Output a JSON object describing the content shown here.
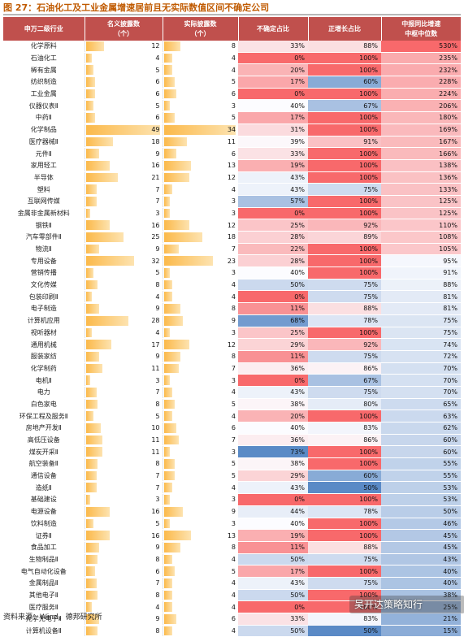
{
  "title": "图 27：石油化工及工业金属增速居前且无实际数值区间不确定公司",
  "headers": [
    "申万二级行业",
    "名义披露数\n（个）",
    "实际披露数\n（个）",
    "不确定占比",
    "正增长占比",
    "中报同比增速\n中枢中位数"
  ],
  "footer": "资料来源：Wind，德邦研究所",
  "watermark": "吴开达策略知行",
  "scale": {
    "nominal_max": 49,
    "actual_max": 34
  },
  "rows": [
    [
      "化学原料",
      "12",
      "8",
      "33%",
      "88%",
      "530%"
    ],
    [
      "石油化工",
      "4",
      "4",
      "0%",
      "100%",
      "235%"
    ],
    [
      "稀有金属",
      "5",
      "4",
      "20%",
      "100%",
      "232%"
    ],
    [
      "纺织制造",
      "6",
      "5",
      "17%",
      "60%",
      "228%"
    ],
    [
      "工业金属",
      "6",
      "6",
      "0%",
      "100%",
      "224%"
    ],
    [
      "仪器仪表Ⅱ",
      "5",
      "3",
      "40%",
      "67%",
      "206%"
    ],
    [
      "中药Ⅱ",
      "6",
      "5",
      "17%",
      "100%",
      "180%"
    ],
    [
      "化学制品",
      "49",
      "34",
      "31%",
      "100%",
      "169%"
    ],
    [
      "医疗器械Ⅱ",
      "18",
      "11",
      "39%",
      "91%",
      "167%"
    ],
    [
      "元件Ⅱ",
      "9",
      "6",
      "33%",
      "100%",
      "166%"
    ],
    [
      "家用轻工",
      "16",
      "13",
      "19%",
      "100%",
      "138%"
    ],
    [
      "半导体",
      "21",
      "12",
      "43%",
      "100%",
      "136%"
    ],
    [
      "塑料",
      "7",
      "4",
      "43%",
      "75%",
      "133%"
    ],
    [
      "互联网传媒",
      "7",
      "3",
      "57%",
      "100%",
      "125%"
    ],
    [
      "金属非金属新材料",
      "3",
      "3",
      "0%",
      "100%",
      "125%"
    ],
    [
      "钢铁Ⅱ",
      "16",
      "12",
      "25%",
      "92%",
      "110%"
    ],
    [
      "汽车零部件Ⅱ",
      "25",
      "18",
      "28%",
      "89%",
      "108%"
    ],
    [
      "物流Ⅱ",
      "9",
      "7",
      "22%",
      "100%",
      "105%"
    ],
    [
      "专用设备",
      "32",
      "23",
      "28%",
      "100%",
      "95%"
    ],
    [
      "营销传播",
      "5",
      "3",
      "40%",
      "100%",
      "91%"
    ],
    [
      "文化传媒",
      "8",
      "4",
      "50%",
      "75%",
      "88%"
    ],
    [
      "包装印刷Ⅱ",
      "4",
      "4",
      "0%",
      "75%",
      "81%"
    ],
    [
      "电子制造",
      "9",
      "8",
      "11%",
      "88%",
      "81%"
    ],
    [
      "计算机应用",
      "28",
      "9",
      "68%",
      "78%",
      "75%"
    ],
    [
      "视听器材",
      "4",
      "3",
      "25%",
      "100%",
      "75%"
    ],
    [
      "通用机械",
      "17",
      "12",
      "29%",
      "92%",
      "74%"
    ],
    [
      "服装家纺",
      "9",
      "8",
      "11%",
      "75%",
      "72%"
    ],
    [
      "化学制药",
      "11",
      "7",
      "36%",
      "86%",
      "70%"
    ],
    [
      "电机Ⅱ",
      "3",
      "3",
      "0%",
      "67%",
      "70%"
    ],
    [
      "电力",
      "7",
      "4",
      "43%",
      "75%",
      "70%"
    ],
    [
      "白色家电",
      "8",
      "5",
      "38%",
      "80%",
      "65%"
    ],
    [
      "环保工程及服务Ⅱ",
      "5",
      "4",
      "20%",
      "100%",
      "63%"
    ],
    [
      "房地产开发Ⅱ",
      "10",
      "6",
      "40%",
      "83%",
      "62%"
    ],
    [
      "高低压设备",
      "11",
      "7",
      "36%",
      "86%",
      "60%"
    ],
    [
      "煤炭开采Ⅱ",
      "11",
      "3",
      "73%",
      "100%",
      "60%"
    ],
    [
      "航空装备Ⅱ",
      "8",
      "5",
      "38%",
      "100%",
      "55%"
    ],
    [
      "通信设备",
      "7",
      "5",
      "29%",
      "60%",
      "55%"
    ],
    [
      "造纸Ⅱ",
      "7",
      "4",
      "43%",
      "50%",
      "53%"
    ],
    [
      "基础建设",
      "3",
      "3",
      "0%",
      "100%",
      "53%"
    ],
    [
      "电源设备",
      "16",
      "9",
      "44%",
      "78%",
      "50%"
    ],
    [
      "饮料制造",
      "5",
      "3",
      "40%",
      "100%",
      "46%"
    ],
    [
      "证券Ⅱ",
      "16",
      "13",
      "19%",
      "100%",
      "45%"
    ],
    [
      "食品加工",
      "9",
      "8",
      "11%",
      "88%",
      "45%"
    ],
    [
      "生物制品Ⅱ",
      "8",
      "4",
      "50%",
      "75%",
      "43%"
    ],
    [
      "电气自动化设备",
      "6",
      "5",
      "17%",
      "100%",
      "40%"
    ],
    [
      "金属制品Ⅱ",
      "7",
      "4",
      "43%",
      "75%",
      "40%"
    ],
    [
      "其他电子Ⅱ",
      "8",
      "4",
      "50%",
      "100%",
      "38%"
    ],
    [
      "医疗服务Ⅱ",
      "4",
      "4",
      "0%",
      "100%",
      "25%"
    ],
    [
      "光学光电子Ⅱ",
      "9",
      "6",
      "33%",
      "83%",
      "21%"
    ],
    [
      "计算机设备Ⅱ",
      "8",
      "4",
      "50%",
      "50%",
      "15%"
    ]
  ]
}
